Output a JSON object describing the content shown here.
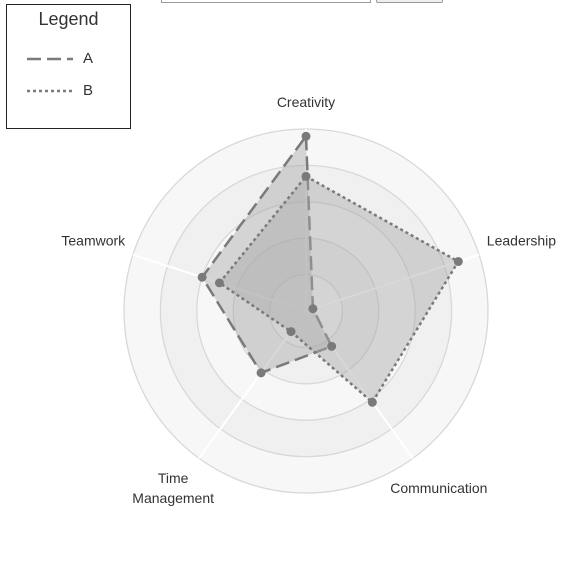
{
  "legend": {
    "title": "Legend",
    "items": [
      {
        "label": "A",
        "dash": "long-dash"
      },
      {
        "label": "B",
        "dash": "dotted"
      }
    ]
  },
  "chart_data": {
    "type": "radar",
    "axes": [
      "Creativity",
      "Leadership",
      "Communication",
      "Time\nManagement",
      "Teamwork"
    ],
    "range": [
      0,
      5
    ],
    "rings": 5,
    "grid": true,
    "legend_position": "top-left",
    "series": [
      {
        "name": "A",
        "style": "long-dash",
        "color": "#7a7a7a",
        "values": [
          4.8,
          0.2,
          1.2,
          2.1,
          3.0
        ]
      },
      {
        "name": "B",
        "style": "dotted",
        "color": "#7a7a7a",
        "values": [
          3.7,
          4.4,
          3.1,
          0.7,
          2.5
        ]
      }
    ],
    "colors": {
      "ring_fill_outer": "#f7f7f7",
      "ring_fill_inner": "#f0f0f0",
      "grid_line": "#d8d8d8",
      "axis_line": "#ffffff",
      "series_fill": "#a8a8a8",
      "series_stroke": "#7a7a7a",
      "point_fill": "#7a7a7a"
    }
  }
}
